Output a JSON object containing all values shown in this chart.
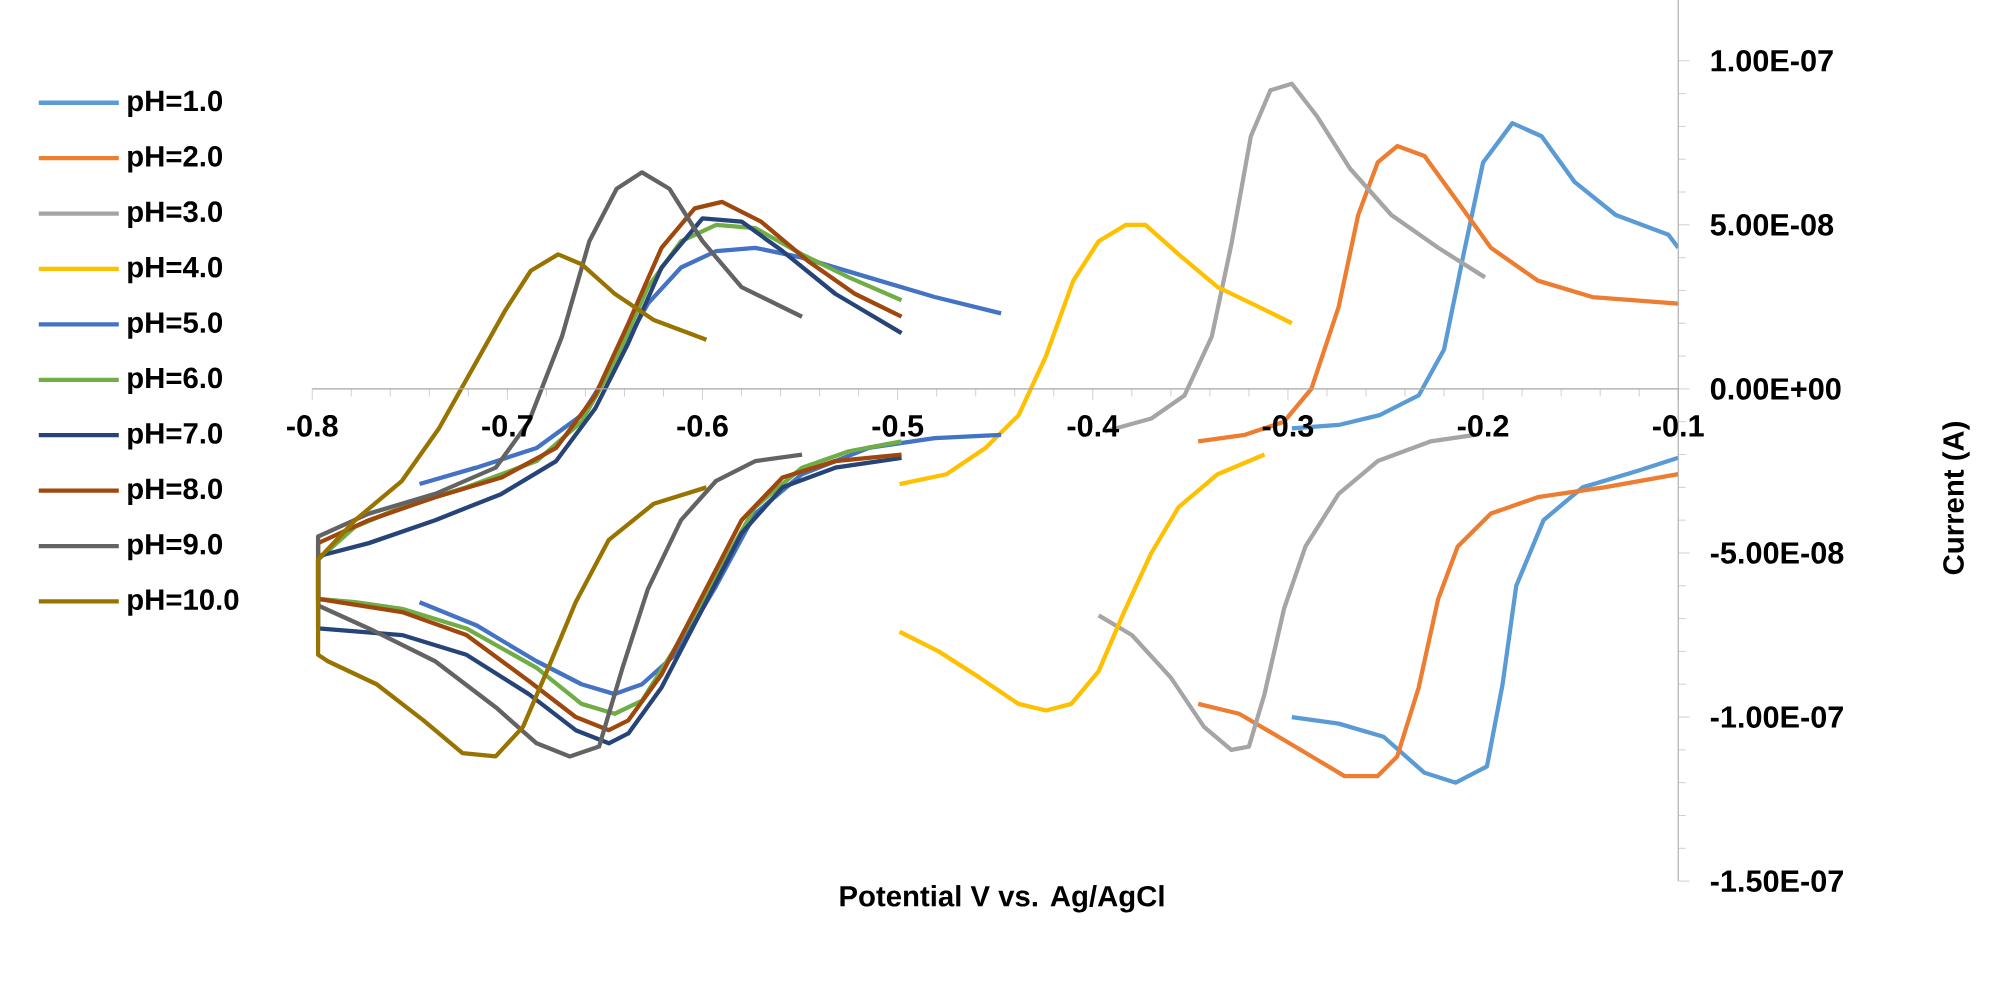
{
  "chart_data": {
    "type": "line",
    "xlabel": "Potential  V vs. Ag/AgCl",
    "ylabel": "Current (A)",
    "xlim": [
      -0.8,
      -0.1
    ],
    "ylim": [
      -1.5e-07,
      1.2e-07
    ],
    "xticks": [
      -0.8,
      -0.7,
      -0.6,
      -0.5,
      -0.4,
      -0.3,
      -0.2,
      -0.1
    ],
    "yticks": [
      {
        "value": 1e-07,
        "label": "1.00E-07"
      },
      {
        "value": 5e-08,
        "label": "5.00E-08"
      },
      {
        "value": 0,
        "label": "0.00E+00"
      },
      {
        "value": -5e-08,
        "label": "-5.00E-08"
      },
      {
        "value": -1e-07,
        "label": "-1.00E-07"
      },
      {
        "value": -1.5e-07,
        "label": "-1.50E-07"
      }
    ],
    "legend": "left",
    "series": [
      {
        "name": "pH=1.0",
        "color": "#5b9bd5",
        "x": [
          -0.298,
          -0.274,
          -0.253,
          -0.233,
          -0.22,
          -0.21,
          -0.2,
          -0.185,
          -0.17,
          -0.153,
          -0.132,
          -0.105,
          -0.1,
          null,
          -0.1,
          -0.121,
          -0.149,
          -0.169,
          -0.183,
          -0.19,
          -0.198,
          -0.214,
          -0.23,
          -0.251,
          -0.274,
          -0.298
        ],
        "values": [
          -1.2e-08,
          -1.1e-08,
          -8e-09,
          -2e-09,
          1.2e-08,
          4.1e-08,
          6.9e-08,
          8.1e-08,
          7.7e-08,
          6.3e-08,
          5.3e-08,
          4.7e-08,
          4.3e-08,
          null,
          -2.1e-08,
          -2.5e-08,
          -3e-08,
          -4e-08,
          -6e-08,
          -9e-08,
          -1.15e-07,
          -1.2e-07,
          -1.17e-07,
          -1.06e-07,
          -1.02e-07,
          -1e-07
        ]
      },
      {
        "name": "pH=2.0",
        "color": "#ed7d31",
        "x": [
          -0.346,
          -0.322,
          -0.302,
          -0.288,
          -0.274,
          -0.264,
          -0.254,
          -0.244,
          -0.23,
          -0.213,
          -0.196,
          -0.172,
          -0.144,
          -0.1,
          null,
          -0.1,
          -0.138,
          -0.172,
          -0.196,
          -0.213,
          -0.223,
          -0.233,
          -0.244,
          -0.254,
          -0.271,
          -0.285,
          -0.302,
          -0.325,
          -0.346
        ],
        "values": [
          -1.6e-08,
          -1.4e-08,
          -1e-08,
          0.0,
          2.5e-08,
          5.3e-08,
          6.9e-08,
          7.4e-08,
          7.1e-08,
          5.7e-08,
          4.3e-08,
          3.3e-08,
          2.8e-08,
          2.6e-08,
          null,
          -2.6e-08,
          -3e-08,
          -3.3e-08,
          -3.8e-08,
          -4.8e-08,
          -6.4e-08,
          -9.1e-08,
          -1.12e-07,
          -1.18e-07,
          -1.18e-07,
          -1.13e-07,
          -1.07e-07,
          -9.9e-08,
          -9.6e-08
        ]
      },
      {
        "name": "pH=3.0",
        "color": "#a5a5a5",
        "x": [
          -0.394,
          -0.37,
          -0.353,
          -0.339,
          -0.329,
          -0.319,
          -0.309,
          -0.298,
          -0.285,
          -0.268,
          -0.247,
          -0.223,
          -0.199,
          null,
          -0.204,
          -0.227,
          -0.254,
          -0.274,
          -0.291,
          -0.302,
          -0.312,
          -0.32,
          -0.329,
          -0.343,
          -0.36,
          -0.38,
          -0.397
        ],
        "values": [
          -1.3e-08,
          -9e-09,
          -2e-09,
          1.6e-08,
          4.4e-08,
          7.7e-08,
          9.1e-08,
          9.3e-08,
          8.3e-08,
          6.7e-08,
          5.3e-08,
          4.3e-08,
          3.4e-08,
          null,
          -1.4e-08,
          -1.6e-08,
          -2.2e-08,
          -3.2e-08,
          -4.8e-08,
          -6.7e-08,
          -9.3e-08,
          -1.09e-07,
          -1.1e-07,
          -1.03e-07,
          -8.8e-08,
          -7.5e-08,
          -6.9e-08
        ]
      },
      {
        "name": "pH=4.0",
        "color": "#ffc000",
        "x": [
          -0.499,
          -0.475,
          -0.455,
          -0.438,
          -0.424,
          -0.41,
          -0.397,
          -0.383,
          -0.373,
          -0.356,
          -0.336,
          -0.315,
          -0.298,
          null,
          -0.312,
          -0.336,
          -0.356,
          -0.37,
          -0.384,
          -0.397,
          -0.411,
          -0.424,
          -0.438,
          -0.458,
          -0.479,
          -0.499
        ],
        "values": [
          -2.9e-08,
          -2.6e-08,
          -1.8e-08,
          -8e-09,
          1e-08,
          3.3e-08,
          4.5e-08,
          5e-08,
          5e-08,
          4.1e-08,
          3.1e-08,
          2.5e-08,
          2e-08,
          null,
          -2e-08,
          -2.6e-08,
          -3.6e-08,
          -5e-08,
          -6.8e-08,
          -8.6e-08,
          -9.6e-08,
          -9.8e-08,
          -9.6e-08,
          -8.8e-08,
          -8e-08,
          -7.4e-08
        ]
      },
      {
        "name": "pH=5.0",
        "color": "#4472c4",
        "x": [
          -0.745,
          -0.716,
          -0.685,
          -0.662,
          -0.645,
          -0.628,
          -0.611,
          -0.593,
          -0.573,
          -0.549,
          -0.515,
          -0.481,
          -0.447,
          null,
          -0.447,
          -0.481,
          -0.515,
          -0.549,
          -0.573,
          -0.593,
          -0.614,
          -0.631,
          -0.645,
          -0.662,
          -0.685,
          -0.716,
          -0.745
        ],
        "values": [
          -2.9e-08,
          -2.4e-08,
          -1.8e-08,
          -8e-09,
          8e-09,
          2.6e-08,
          3.7e-08,
          4.2e-08,
          4.3e-08,
          4e-08,
          3.4e-08,
          2.8e-08,
          2.3e-08,
          null,
          -1.4e-08,
          -1.5e-08,
          -1.8e-08,
          -2.6e-08,
          -3.8e-08,
          -6e-08,
          -8.1e-08,
          -9e-08,
          -9.3e-08,
          -9e-08,
          -8.3e-08,
          -7.2e-08,
          -6.5e-08
        ]
      },
      {
        "name": "pH=6.0",
        "color": "#70ad47",
        "x": [
          -0.498,
          -0.525,
          -0.549,
          -0.573,
          -0.593,
          -0.614,
          -0.631,
          -0.645,
          -0.662,
          -0.685,
          -0.721,
          -0.754,
          -0.778,
          -0.797,
          -0.797,
          -0.778,
          -0.754,
          -0.721,
          -0.685,
          -0.662,
          -0.645,
          -0.628,
          -0.611,
          -0.593,
          -0.573,
          -0.549,
          -0.525,
          -0.498
        ],
        "values": [
          -1.6e-08,
          -1.9e-08,
          -2.4e-08,
          -3.6e-08,
          -5.7e-08,
          -7.9e-08,
          -9.5e-08,
          -9.9e-08,
          -9.6e-08,
          -8.5e-08,
          -7.3e-08,
          -6.7e-08,
          -6.5e-08,
          -6.4e-08,
          -5.2e-08,
          -4.2e-08,
          -3.6e-08,
          -3e-08,
          -2.2e-08,
          -1e-08,
          8e-09,
          3.1e-08,
          4.5e-08,
          5e-08,
          4.9e-08,
          4.1e-08,
          3.4e-08,
          2.7e-08
        ]
      },
      {
        "name": "pH=7.0",
        "color": "#264478",
        "x": [
          -0.498,
          -0.532,
          -0.559,
          -0.58,
          -0.6,
          -0.621,
          -0.638,
          -0.648,
          -0.665,
          -0.689,
          -0.721,
          -0.754,
          -0.797,
          -0.797,
          -0.771,
          -0.737,
          -0.703,
          -0.675,
          -0.655,
          -0.638,
          -0.621,
          -0.6,
          -0.58,
          -0.559,
          -0.532,
          -0.498
        ],
        "values": [
          -2.1e-08,
          -2.4e-08,
          -3e-08,
          -4.4e-08,
          -6.7e-08,
          -9.1e-08,
          -1.05e-07,
          -1.08e-07,
          -1.04e-07,
          -9.3e-08,
          -8.1e-08,
          -7.5e-08,
          -7.3e-08,
          -5.1e-08,
          -4.7e-08,
          -4e-08,
          -3.2e-08,
          -2.2e-08,
          -6e-09,
          1.4e-08,
          3.7e-08,
          5.2e-08,
          5.1e-08,
          4.2e-08,
          2.9e-08,
          1.7e-08
        ]
      },
      {
        "name": "pH=8.0",
        "color": "#9e480e",
        "x": [
          -0.498,
          -0.532,
          -0.559,
          -0.58,
          -0.6,
          -0.621,
          -0.638,
          -0.648,
          -0.665,
          -0.689,
          -0.721,
          -0.754,
          -0.797,
          -0.797,
          -0.771,
          -0.737,
          -0.703,
          -0.675,
          -0.655,
          -0.638,
          -0.621,
          -0.604,
          -0.59,
          -0.57,
          -0.546,
          -0.522,
          -0.498
        ],
        "values": [
          -2e-08,
          -2.2e-08,
          -2.7e-08,
          -4e-08,
          -6.3e-08,
          -8.7e-08,
          -1.01e-07,
          -1.04e-07,
          -1e-07,
          -8.9e-08,
          -7.5e-08,
          -6.8e-08,
          -6.4e-08,
          -4.7e-08,
          -4e-08,
          -3.3e-08,
          -2.7e-08,
          -1.8e-08,
          -2e-09,
          2e-08,
          4.3e-08,
          5.5e-08,
          5.7e-08,
          5.1e-08,
          3.9e-08,
          2.9e-08,
          2.2e-08
        ]
      },
      {
        "name": "pH=9.0",
        "color": "#636363",
        "x": [
          -0.549,
          -0.573,
          -0.593,
          -0.611,
          -0.628,
          -0.641,
          -0.653,
          -0.668,
          -0.685,
          -0.706,
          -0.737,
          -0.771,
          -0.797,
          -0.797,
          -0.771,
          -0.737,
          -0.706,
          -0.689,
          -0.672,
          -0.658,
          -0.644,
          -0.631,
          -0.617,
          -0.6,
          -0.58,
          -0.549
        ],
        "values": [
          -2e-08,
          -2.2e-08,
          -2.8e-08,
          -4e-08,
          -6.1e-08,
          -8.5e-08,
          -1.09e-07,
          -1.12e-07,
          -1.08e-07,
          -9.7e-08,
          -8.3e-08,
          -7.3e-08,
          -6.6e-08,
          -4.5e-08,
          -3.8e-08,
          -3.2e-08,
          -2.4e-08,
          -1e-08,
          1.6e-08,
          4.5e-08,
          6.1e-08,
          6.6e-08,
          6.1e-08,
          4.5e-08,
          3.1e-08,
          2.2e-08
        ]
      },
      {
        "name": "pH=10.0",
        "color": "#997300",
        "x": [
          -0.598,
          -0.625,
          -0.648,
          -0.665,
          -0.679,
          -0.692,
          -0.706,
          -0.723,
          -0.743,
          -0.767,
          -0.792,
          -0.797,
          -0.797,
          -0.778,
          -0.754,
          -0.735,
          -0.718,
          -0.701,
          -0.688,
          -0.674,
          -0.662,
          -0.645,
          -0.625,
          -0.598
        ],
        "values": [
          -3e-08,
          -3.5e-08,
          -4.6e-08,
          -6.5e-08,
          -8.5e-08,
          -1.03e-07,
          -1.12e-07,
          -1.11e-07,
          -1.01e-07,
          -9e-08,
          -8.3e-08,
          -8.1e-08,
          -5.2e-08,
          -4e-08,
          -2.8e-08,
          -1.2e-08,
          6e-09,
          2.4e-08,
          3.6e-08,
          4.1e-08,
          3.8e-08,
          2.9e-08,
          2.1e-08,
          1.5e-08
        ]
      }
    ]
  }
}
